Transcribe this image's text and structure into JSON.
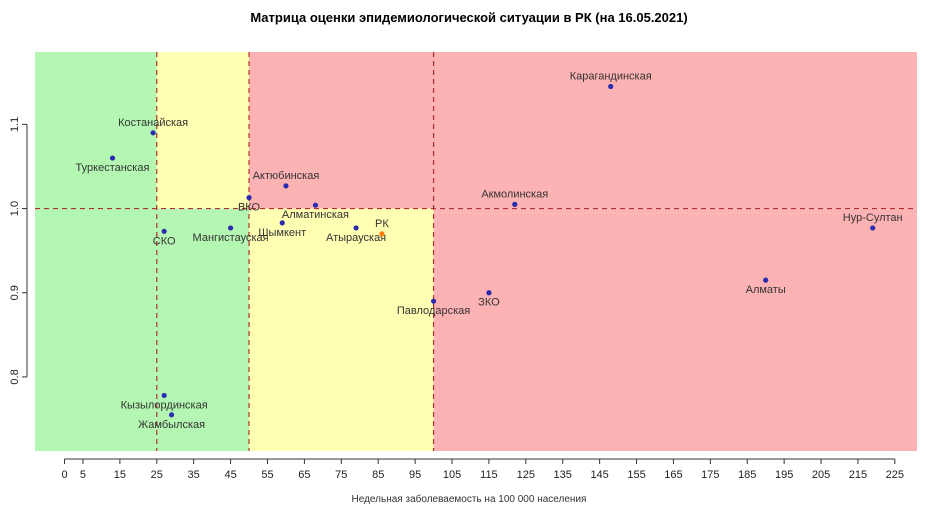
{
  "chart_data": {
    "type": "scatter",
    "title": "Матрица оценки эпидемиологической ситуации в РК (на 16.05.2021)",
    "xlabel": "Недельная заболеваемость на 100 000 населения",
    "ylabel": "",
    "xlim": [
      -8,
      231
    ],
    "ylim": [
      0.712,
      1.186
    ],
    "x_ticks": [
      0,
      5,
      15,
      25,
      35,
      45,
      55,
      65,
      75,
      85,
      95,
      105,
      115,
      125,
      135,
      145,
      155,
      165,
      175,
      185,
      195,
      205,
      215,
      225
    ],
    "y_ticks": [
      0.8,
      0.9,
      1.0,
      1.1
    ],
    "y_tick_labels": [
      "0.8",
      "0.9",
      "1.0",
      "1.1"
    ],
    "reference_lines": {
      "x": [
        25,
        50,
        100
      ],
      "y": [
        1.0
      ]
    },
    "zones": [
      {
        "x": [
          -8,
          25
        ],
        "y": [
          0.712,
          1.186
        ],
        "color": "#b3f7b3"
      },
      {
        "x": [
          25,
          50
        ],
        "y": [
          1.0,
          1.186
        ],
        "color": "#ffffb3"
      },
      {
        "x": [
          25,
          50
        ],
        "y": [
          0.712,
          1.0
        ],
        "color": "#b3f7b3"
      },
      {
        "x": [
          50,
          231
        ],
        "y": [
          1.0,
          1.186
        ],
        "color": "#fdb2b4"
      },
      {
        "x": [
          50,
          100
        ],
        "y": [
          0.712,
          1.0
        ],
        "color": "#ffffb3"
      },
      {
        "x": [
          100,
          231
        ],
        "y": [
          0.712,
          1.0
        ],
        "color": "#fdb2b4"
      }
    ],
    "grid": false,
    "points": [
      {
        "label": "Карагандинская",
        "x": 148,
        "y": 1.145,
        "color": "#2b2bb0",
        "label_pos": "above"
      },
      {
        "label": "Костанайская",
        "x": 24,
        "y": 1.09,
        "color": "#2b2bb0",
        "label_pos": "above"
      },
      {
        "label": "Туркестанская",
        "x": 13,
        "y": 1.06,
        "color": "#2b2bb0",
        "label_pos": "below"
      },
      {
        "label": "Актюбинская",
        "x": 60,
        "y": 1.027,
        "color": "#2b2bb0",
        "label_pos": "above"
      },
      {
        "label": "ВКО",
        "x": 50,
        "y": 1.013,
        "color": "#2b2bb0",
        "label_pos": "below"
      },
      {
        "label": "Акмолинская",
        "x": 122,
        "y": 1.005,
        "color": "#2b2bb0",
        "label_pos": "above"
      },
      {
        "label": "Алматинская",
        "x": 68,
        "y": 1.004,
        "color": "#2b2bb0",
        "label_pos": "below"
      },
      {
        "label": "Шымкент",
        "x": 59,
        "y": 0.983,
        "color": "#2b2bb0",
        "label_pos": "below"
      },
      {
        "label": "Атырауская",
        "x": 79,
        "y": 0.977,
        "color": "#2b2bb0",
        "label_pos": "below"
      },
      {
        "label": "РК",
        "x": 86,
        "y": 0.97,
        "color": "#ff7f00",
        "label_color": "#ff7f00",
        "label_pos": "above"
      },
      {
        "label": "СКО",
        "x": 27,
        "y": 0.973,
        "color": "#2b2bb0",
        "label_pos": "below"
      },
      {
        "label": "Мангистауская",
        "x": 45,
        "y": 0.977,
        "color": "#2b2bb0",
        "label_pos": "below"
      },
      {
        "label": "Нур-Султан",
        "x": 219,
        "y": 0.977,
        "color": "#2b2bb0",
        "label_pos": "above"
      },
      {
        "label": "Алматы",
        "x": 190,
        "y": 0.915,
        "color": "#2b2bb0",
        "label_pos": "below"
      },
      {
        "label": "ЗКО",
        "x": 115,
        "y": 0.9,
        "color": "#2b2bb0",
        "label_pos": "below"
      },
      {
        "label": "Павлодарская",
        "x": 100,
        "y": 0.89,
        "color": "#2b2bb0",
        "label_pos": "below"
      },
      {
        "label": "Кызылординская",
        "x": 27,
        "y": 0.778,
        "color": "#2b2bb0",
        "label_pos": "below"
      },
      {
        "label": "Жамбылская",
        "x": 29,
        "y": 0.755,
        "color": "#2b2bb0",
        "label_pos": "below"
      }
    ]
  }
}
